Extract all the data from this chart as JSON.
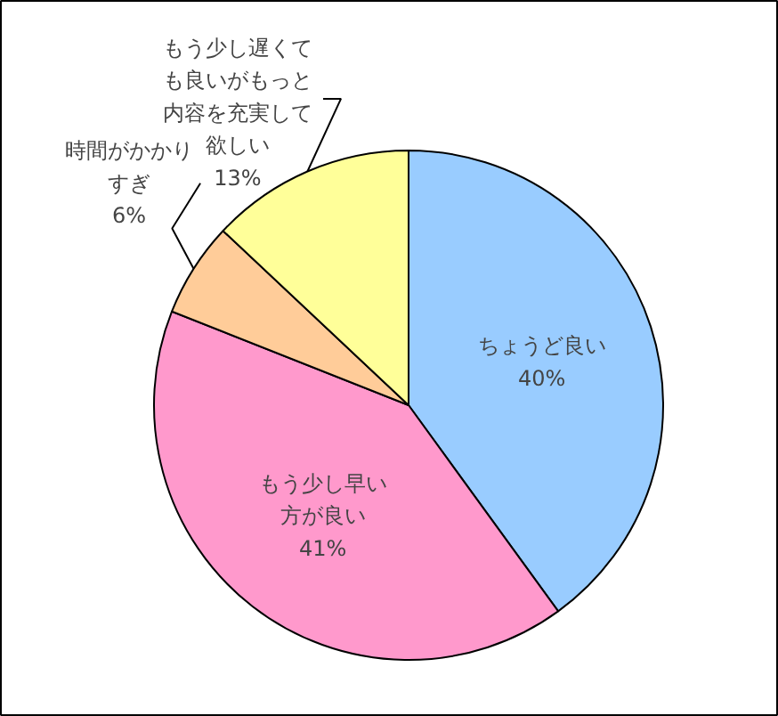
{
  "chart_data": {
    "type": "pie",
    "categories": [
      "ちょうど良い",
      "もう少し早い方が良い",
      "時間がかかりすぎ",
      "もう少し遅くても良いがもっと内容を充実して欲しい"
    ],
    "values": [
      40,
      41,
      6,
      13
    ],
    "colors": [
      "#99ccff",
      "#ff99cc",
      "#ffcc99",
      "#ffff99"
    ],
    "value_labels": [
      "40%",
      "41%",
      "6%",
      "13%"
    ]
  }
}
